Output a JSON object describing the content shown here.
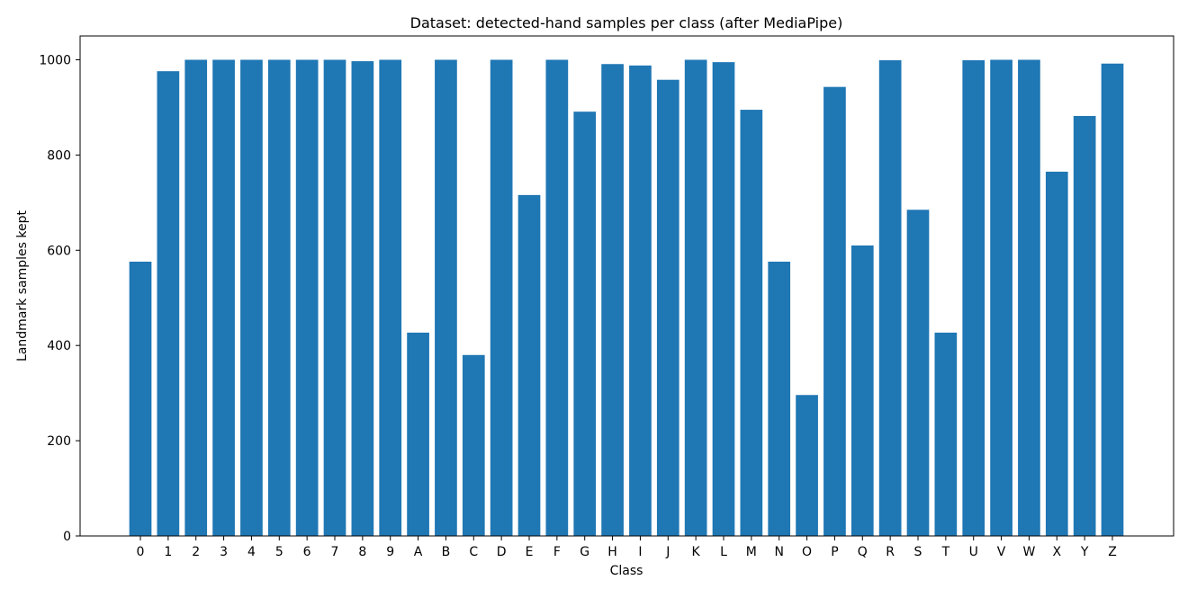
{
  "chart_data": {
    "type": "bar",
    "title": "Dataset: detected-hand samples per class (after MediaPipe)",
    "xlabel": "Class",
    "ylabel": "Landmark samples kept",
    "categories": [
      "0",
      "1",
      "2",
      "3",
      "4",
      "5",
      "6",
      "7",
      "8",
      "9",
      "A",
      "B",
      "C",
      "D",
      "E",
      "F",
      "G",
      "H",
      "I",
      "J",
      "K",
      "L",
      "M",
      "N",
      "O",
      "P",
      "Q",
      "R",
      "S",
      "T",
      "U",
      "V",
      "W",
      "X",
      "Y",
      "Z"
    ],
    "values": [
      576,
      976,
      1000,
      1000,
      1000,
      1000,
      1000,
      1000,
      997,
      1000,
      427,
      1000,
      380,
      1000,
      716,
      1000,
      891,
      991,
      988,
      958,
      1000,
      995,
      895,
      576,
      296,
      943,
      610,
      999,
      685,
      427,
      999,
      1000,
      1000,
      765,
      882,
      992
    ],
    "ylim": [
      0,
      1050
    ],
    "yticks": [
      0,
      200,
      400,
      600,
      800,
      1000
    ],
    "grid": false,
    "bar_color": "#1f77b4"
  }
}
